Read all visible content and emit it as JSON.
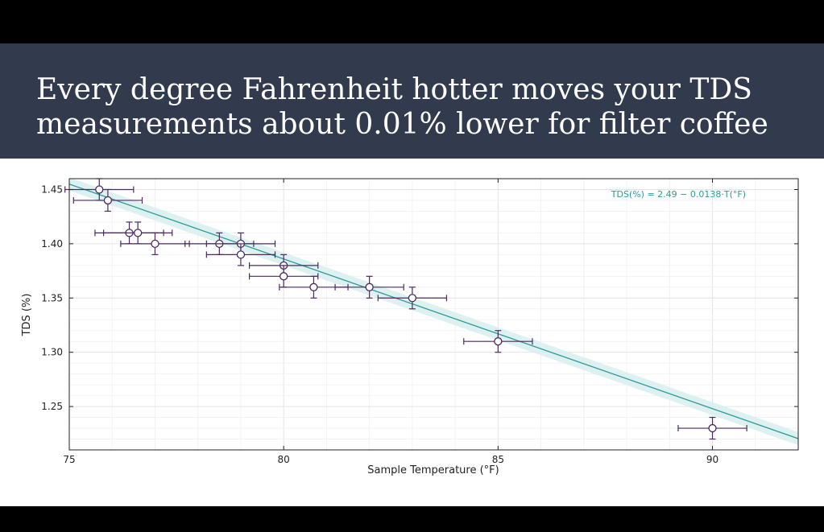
{
  "slide": {
    "title_lines": [
      "Every degree Fahrenheit hotter moves your TDS",
      "measurements about 0.01% lower for filter coffee"
    ]
  },
  "colors": {
    "band": "#323a4e",
    "marker": "#4b2a5e",
    "fit_line": "#2e9a98",
    "confidence_band": "#d7efee",
    "annotation": "#2e9a98"
  },
  "chart_data": {
    "type": "scatter",
    "xlabel": "Sample Temperature (°F)",
    "ylabel": "TDS (%)",
    "xlim": [
      75,
      92
    ],
    "ylim": [
      1.21,
      1.46
    ],
    "xticks": [
      75,
      80,
      85,
      90
    ],
    "yticks": [
      1.25,
      1.3,
      1.35,
      1.4,
      1.45
    ],
    "ytick_labels": [
      "1.25",
      "1.30",
      "1.35",
      "1.40",
      "1.45"
    ],
    "grid": true,
    "annotation": "TDS(%) = 2.49 − 0.0138·T(°F)",
    "fit": {
      "intercept": 2.49,
      "slope": -0.0138,
      "band_halfwidth": 0.006
    },
    "points": [
      {
        "x": 75.7,
        "y": 1.45,
        "xerr": 0.8,
        "yerr": 0.01
      },
      {
        "x": 75.9,
        "y": 1.44,
        "xerr": 0.8,
        "yerr": 0.01
      },
      {
        "x": 76.4,
        "y": 1.41,
        "xerr": 0.8,
        "yerr": 0.01
      },
      {
        "x": 76.6,
        "y": 1.41,
        "xerr": 0.8,
        "yerr": 0.01
      },
      {
        "x": 77.0,
        "y": 1.4,
        "xerr": 0.8,
        "yerr": 0.01
      },
      {
        "x": 78.5,
        "y": 1.4,
        "xerr": 0.8,
        "yerr": 0.01
      },
      {
        "x": 79.0,
        "y": 1.4,
        "xerr": 0.8,
        "yerr": 0.01
      },
      {
        "x": 79.0,
        "y": 1.39,
        "xerr": 0.8,
        "yerr": 0.01
      },
      {
        "x": 80.0,
        "y": 1.38,
        "xerr": 0.8,
        "yerr": 0.01
      },
      {
        "x": 80.0,
        "y": 1.37,
        "xerr": 0.8,
        "yerr": 0.01
      },
      {
        "x": 80.7,
        "y": 1.36,
        "xerr": 0.8,
        "yerr": 0.01
      },
      {
        "x": 82.0,
        "y": 1.36,
        "xerr": 0.8,
        "yerr": 0.01
      },
      {
        "x": 83.0,
        "y": 1.35,
        "xerr": 0.8,
        "yerr": 0.01
      },
      {
        "x": 85.0,
        "y": 1.31,
        "xerr": 0.8,
        "yerr": 0.01
      },
      {
        "x": 90.0,
        "y": 1.23,
        "xerr": 0.8,
        "yerr": 0.01
      }
    ]
  }
}
